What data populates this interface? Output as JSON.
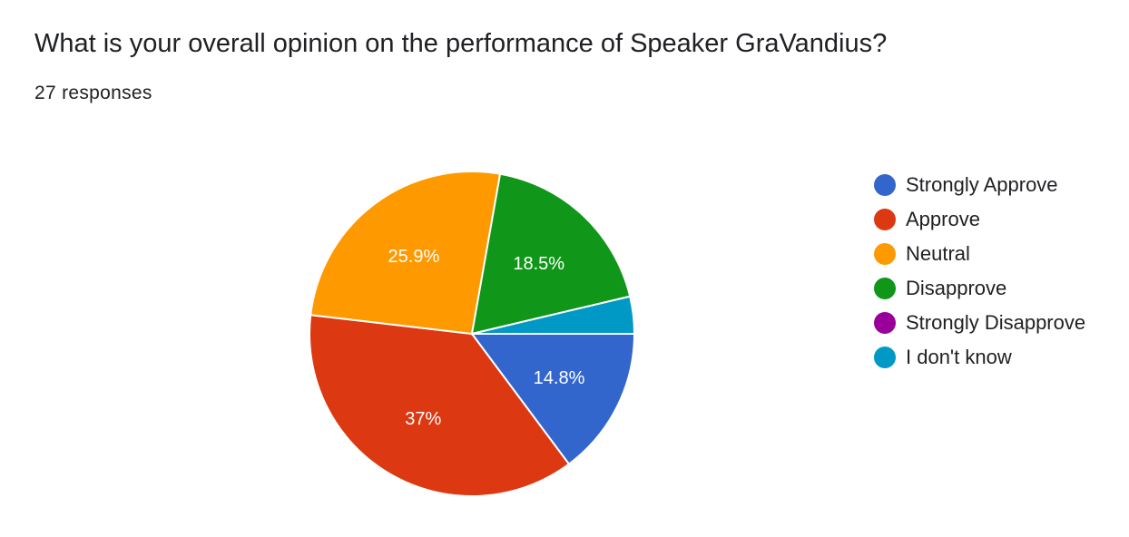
{
  "title": "What is your overall opinion on the performance of Speaker GraVandius?",
  "response_count": "27 responses",
  "chart_data": {
    "type": "pie",
    "title": "What is your overall opinion on the performance of Speaker GraVandius?",
    "total_responses": 27,
    "legend_position": "right",
    "slices": [
      {
        "label": "Strongly Approve",
        "count": 4,
        "percent": 14.8,
        "data_label": "14.8%",
        "color": "#3366cc"
      },
      {
        "label": "Approve",
        "count": 10,
        "percent": 37.0,
        "data_label": "37%",
        "color": "#dc3912"
      },
      {
        "label": "Neutral",
        "count": 7,
        "percent": 25.9,
        "data_label": "25.9%",
        "color": "#ff9900"
      },
      {
        "label": "Disapprove",
        "count": 5,
        "percent": 18.5,
        "data_label": "18.5%",
        "color": "#109618"
      },
      {
        "label": "Strongly Disapprove",
        "count": 0,
        "percent": 0.0,
        "data_label": "",
        "color": "#990099"
      },
      {
        "label": "I don't know",
        "count": 1,
        "percent": 3.7,
        "data_label": "",
        "color": "#0099c6"
      }
    ]
  }
}
